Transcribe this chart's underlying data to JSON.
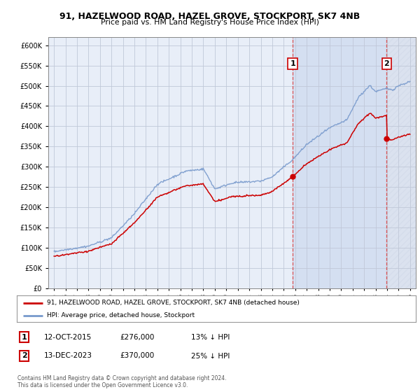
{
  "title": "91, HAZELWOOD ROAD, HAZEL GROVE, STOCKPORT, SK7 4NB",
  "subtitle": "Price paid vs. HM Land Registry's House Price Index (HPI)",
  "ylim": [
    0,
    620000
  ],
  "yticks": [
    0,
    50000,
    100000,
    150000,
    200000,
    250000,
    300000,
    350000,
    400000,
    450000,
    500000,
    550000,
    600000
  ],
  "background_color": "#ffffff",
  "plot_bg_color": "#e8eef8",
  "grid_color": "#c0c8d8",
  "hpi_color": "#7799cc",
  "price_color": "#cc0000",
  "sale1_date": "12-OCT-2015",
  "sale1_price": 276000,
  "sale1_pct": "13%",
  "sale1_year": 2015.78,
  "sale2_date": "13-DEC-2023",
  "sale2_price": 370000,
  "sale2_pct": "25%",
  "sale2_year": 2023.95,
  "legend_label_price": "91, HAZELWOOD ROAD, HAZEL GROVE, STOCKPORT, SK7 4NB (detached house)",
  "legend_label_hpi": "HPI: Average price, detached house, Stockport",
  "footer1": "Contains HM Land Registry data © Crown copyright and database right 2024.",
  "footer2": "This data is licensed under the Open Government Licence v3.0.",
  "hpi_seed": 42,
  "price_seed": 123
}
